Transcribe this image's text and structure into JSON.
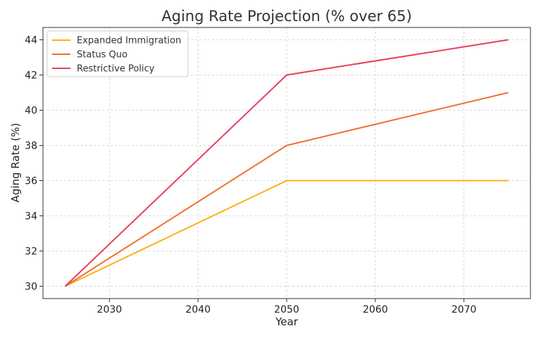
{
  "chart_data": {
    "type": "line",
    "title": "Aging Rate Projection (% over 65)",
    "xlabel": "Year",
    "ylabel": "Aging Rate (%)",
    "x": [
      2025,
      2050,
      2075
    ],
    "xlim": [
      2022.5,
      2077.5
    ],
    "ylim": [
      29.3,
      44.7
    ],
    "xticks": [
      2030,
      2040,
      2050,
      2060,
      2070
    ],
    "yticks": [
      30,
      32,
      34,
      36,
      38,
      40,
      42,
      44
    ],
    "grid": true,
    "legend_position": "top-left",
    "series": [
      {
        "name": "Expanded Immigration",
        "color": "#fbb117",
        "values": [
          30,
          36,
          36
        ]
      },
      {
        "name": "Status Quo",
        "color": "#f07030",
        "values": [
          30,
          38,
          41
        ]
      },
      {
        "name": "Restrictive Policy",
        "color": "#e8405a",
        "values": [
          30,
          42,
          44
        ]
      }
    ]
  }
}
